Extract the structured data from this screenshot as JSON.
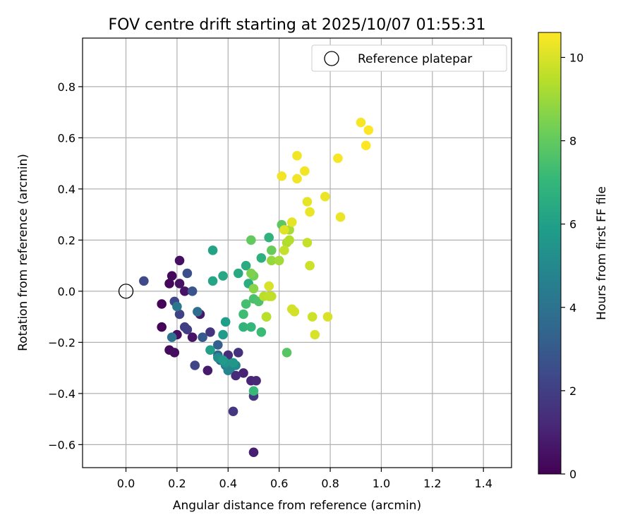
{
  "chart_data": {
    "type": "scatter",
    "title": "FOV centre drift starting at 2025/10/07 01:55:31",
    "xlabel": "Angular distance from reference (arcmin)",
    "ylabel": "Rotation from reference (arcmin)",
    "xlim": [
      -0.17,
      1.51
    ],
    "ylim": [
      -0.69,
      0.99
    ],
    "x_ticks": [
      0.0,
      0.2,
      0.4,
      0.6,
      0.8,
      1.0,
      1.2,
      1.4
    ],
    "x_tick_labels": [
      "0.0",
      "0.2",
      "0.4",
      "0.6",
      "0.8",
      "1.0",
      "1.2",
      "1.4"
    ],
    "y_ticks": [
      -0.6,
      -0.4,
      -0.2,
      0.0,
      0.2,
      0.4,
      0.6,
      0.8
    ],
    "y_tick_labels": [
      "−0.6",
      "−0.4",
      "−0.2",
      "0.0",
      "0.2",
      "0.4",
      "0.6",
      "0.8"
    ],
    "grid": true,
    "legend": {
      "position": "top-right",
      "label": "Reference platepar"
    },
    "reference_point": {
      "x": 0.0,
      "y": 0.0
    },
    "colorbar": {
      "label": "Hours from first FF file",
      "range": [
        0,
        10.6
      ],
      "ticks": [
        0,
        2,
        4,
        6,
        8,
        10
      ],
      "tick_labels": [
        "0",
        "2",
        "4",
        "6",
        "8",
        "10"
      ],
      "colormap": "viridis"
    },
    "points": [
      [
        0.14,
        -0.05,
        0.1
      ],
      [
        0.14,
        -0.14,
        0.15
      ],
      [
        0.17,
        0.03,
        0.2
      ],
      [
        0.18,
        0.06,
        0.25
      ],
      [
        0.17,
        -0.23,
        0.3
      ],
      [
        0.19,
        -0.24,
        0.35
      ],
      [
        0.2,
        -0.17,
        0.4
      ],
      [
        0.21,
        0.12,
        0.45
      ],
      [
        0.21,
        0.03,
        0.5
      ],
      [
        0.23,
        0.0,
        0.55
      ],
      [
        0.26,
        -0.18,
        0.6
      ],
      [
        0.29,
        -0.09,
        0.7
      ],
      [
        0.32,
        -0.31,
        0.8
      ],
      [
        0.5,
        -0.63,
        0.9
      ],
      [
        0.46,
        -0.32,
        1.0
      ],
      [
        0.49,
        -0.35,
        1.1
      ],
      [
        0.51,
        -0.35,
        1.2
      ],
      [
        0.43,
        -0.33,
        1.3
      ],
      [
        0.4,
        -0.25,
        1.4
      ],
      [
        0.44,
        -0.24,
        1.5
      ],
      [
        0.33,
        -0.16,
        1.6
      ],
      [
        0.42,
        -0.47,
        1.7
      ],
      [
        0.5,
        -0.41,
        1.8
      ],
      [
        0.24,
        -0.15,
        1.9
      ],
      [
        0.23,
        -0.14,
        2.0
      ],
      [
        0.21,
        -0.09,
        2.1
      ],
      [
        0.27,
        -0.29,
        2.2
      ],
      [
        0.19,
        -0.04,
        2.3
      ],
      [
        0.07,
        0.04,
        2.4
      ],
      [
        0.24,
        0.07,
        2.6
      ],
      [
        0.26,
        0.0,
        2.8
      ],
      [
        0.3,
        -0.18,
        3.0
      ],
      [
        0.36,
        -0.21,
        3.2
      ],
      [
        0.36,
        -0.25,
        3.4
      ],
      [
        0.37,
        -0.27,
        3.6
      ],
      [
        0.28,
        -0.08,
        3.8
      ],
      [
        0.18,
        -0.18,
        4.0
      ],
      [
        0.2,
        -0.06,
        4.2
      ],
      [
        0.39,
        -0.29,
        4.4
      ],
      [
        0.41,
        -0.3,
        4.6
      ],
      [
        0.4,
        -0.31,
        4.8
      ],
      [
        0.43,
        -0.29,
        5.0
      ],
      [
        0.36,
        -0.26,
        5.2
      ],
      [
        0.39,
        -0.28,
        5.4
      ],
      [
        0.42,
        -0.28,
        5.6
      ],
      [
        0.38,
        -0.27,
        5.7
      ],
      [
        0.38,
        -0.17,
        5.8
      ],
      [
        0.39,
        -0.12,
        5.9
      ],
      [
        0.33,
        -0.23,
        6.0
      ],
      [
        0.34,
        0.16,
        6.1
      ],
      [
        0.34,
        0.04,
        6.2
      ],
      [
        0.38,
        0.06,
        6.3
      ],
      [
        0.44,
        0.07,
        6.4
      ],
      [
        0.47,
        0.1,
        6.5
      ],
      [
        0.48,
        0.03,
        6.6
      ],
      [
        0.53,
        0.13,
        6.7
      ],
      [
        0.56,
        0.21,
        6.8
      ],
      [
        0.46,
        -0.14,
        6.9
      ],
      [
        0.49,
        -0.14,
        7.0
      ],
      [
        0.5,
        -0.39,
        7.1
      ],
      [
        0.53,
        -0.16,
        7.2
      ],
      [
        0.46,
        -0.09,
        7.3
      ],
      [
        0.47,
        -0.05,
        7.4
      ],
      [
        0.5,
        -0.03,
        7.5
      ],
      [
        0.52,
        -0.04,
        7.6
      ],
      [
        0.55,
        -0.1,
        7.7
      ],
      [
        0.63,
        -0.24,
        7.8
      ],
      [
        0.61,
        0.26,
        7.9
      ],
      [
        0.49,
        0.2,
        8.0
      ],
      [
        0.57,
        0.16,
        8.1
      ],
      [
        0.5,
        0.06,
        8.3
      ],
      [
        0.49,
        0.07,
        8.5
      ],
      [
        0.5,
        0.01,
        8.7
      ],
      [
        0.57,
        0.12,
        8.9
      ],
      [
        0.6,
        0.12,
        9.1
      ],
      [
        0.64,
        0.24,
        9.2
      ],
      [
        0.63,
        0.19,
        9.3
      ],
      [
        0.64,
        0.2,
        9.4
      ],
      [
        0.54,
        -0.02,
        9.5
      ],
      [
        0.55,
        -0.1,
        9.5
      ],
      [
        0.56,
        -0.02,
        9.6
      ],
      [
        0.57,
        -0.02,
        9.6
      ],
      [
        0.62,
        0.16,
        9.7
      ],
      [
        0.71,
        0.19,
        9.7
      ],
      [
        0.72,
        0.1,
        9.8
      ],
      [
        0.73,
        -0.1,
        9.8
      ],
      [
        0.66,
        -0.08,
        9.9
      ],
      [
        0.65,
        -0.07,
        9.9
      ],
      [
        0.56,
        0.02,
        10.0
      ],
      [
        0.74,
        -0.17,
        10.0
      ],
      [
        0.79,
        -0.1,
        10.0
      ],
      [
        0.62,
        0.24,
        10.1
      ],
      [
        0.65,
        0.27,
        10.2
      ],
      [
        0.71,
        0.35,
        10.2
      ],
      [
        0.72,
        0.31,
        10.3
      ],
      [
        0.78,
        0.37,
        10.3
      ],
      [
        0.84,
        0.29,
        10.3
      ],
      [
        0.61,
        0.45,
        10.4
      ],
      [
        0.67,
        0.44,
        10.4
      ],
      [
        0.7,
        0.47,
        10.4
      ],
      [
        0.67,
        0.53,
        10.4
      ],
      [
        0.83,
        0.52,
        10.5
      ],
      [
        0.92,
        0.66,
        10.5
      ],
      [
        0.94,
        0.57,
        10.6
      ],
      [
        0.95,
        0.63,
        10.6
      ]
    ]
  },
  "colors": {
    "grid": "#b0b0b0",
    "axes": "#000000",
    "viridis": [
      "#440154",
      "#482878",
      "#3e4989",
      "#31688e",
      "#26828e",
      "#1f9e89",
      "#35b779",
      "#6ece58",
      "#b5de2b",
      "#fde725"
    ]
  }
}
